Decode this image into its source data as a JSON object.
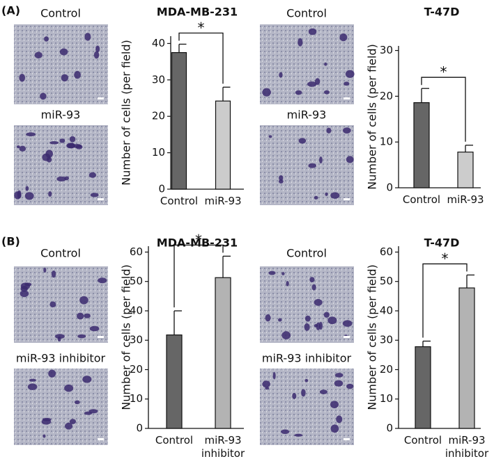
{
  "panel_labels": [
    "(A)",
    "(B)"
  ],
  "image_labels": [
    [
      "Control",
      "miR-93"
    ],
    [
      "Control",
      "miR-93"
    ],
    [
      "Control",
      "miR-93 inhibitor"
    ],
    [
      "Control",
      "miR-93 inhibitor"
    ]
  ],
  "chart_data": [
    {
      "type": "bar",
      "title": "MDA-MB-231",
      "y_label": "Number of cells (per field)",
      "annotation": "*",
      "categories": [
        "Control",
        "miR-93"
      ],
      "values": [
        37.5,
        24.2
      ],
      "errors": [
        2.3,
        3.8
      ],
      "colors": [
        "#666666",
        "#cccccc"
      ],
      "ylim": [
        0,
        42
      ],
      "yticks": [
        0,
        10,
        20,
        30,
        40
      ]
    },
    {
      "type": "bar",
      "title": "T-47D",
      "y_label": "Number of cells (per field)",
      "annotation": "*",
      "categories": [
        "Control",
        "miR-93"
      ],
      "values": [
        18.6,
        7.8
      ],
      "errors": [
        3.1,
        1.5
      ],
      "colors": [
        "#666666",
        "#cccccc"
      ],
      "ylim": [
        0,
        31
      ],
      "yticks": [
        0,
        10,
        20,
        30
      ]
    },
    {
      "type": "bar",
      "title": "MDA-MB-231",
      "y_label": "Number of cells (per field)",
      "annotation": "*",
      "categories": [
        "Control",
        "miR-93 inhibitor"
      ],
      "values": [
        31.8,
        51.3
      ],
      "errors": [
        8.2,
        7.3
      ],
      "colors": [
        "#666666",
        "#b3b3b3"
      ],
      "ylim": [
        0,
        62
      ],
      "yticks": [
        0,
        10,
        20,
        30,
        40,
        50,
        60
      ]
    },
    {
      "type": "bar",
      "title": "T-47D",
      "y_label": "Number of cells (per field)",
      "annotation": "*",
      "categories": [
        "Control",
        "miR-93 inhibitor"
      ],
      "values": [
        27.8,
        47.8
      ],
      "errors": [
        1.9,
        4.4
      ],
      "colors": [
        "#666666",
        "#b3b3b3"
      ],
      "ylim": [
        0,
        62
      ],
      "yticks": [
        0,
        10,
        20,
        30,
        40,
        50,
        60
      ]
    }
  ]
}
